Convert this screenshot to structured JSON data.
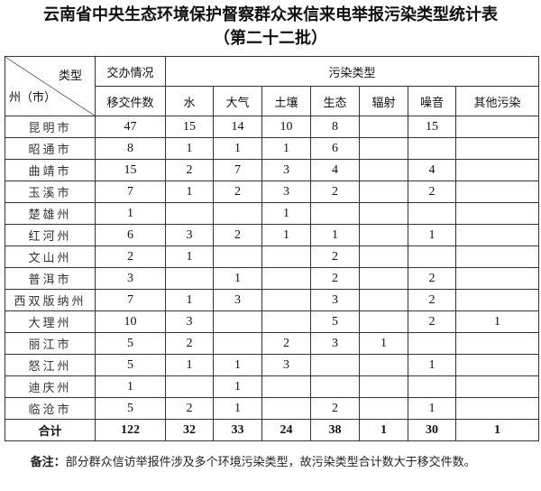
{
  "title": "云南省中央生态环境保护督察群众来信来电举报污染类型统计表",
  "subtitle": "（第二十二批）",
  "header": {
    "corner_top": "类型",
    "corner_bottom": "州（市）",
    "group1": "交办情况",
    "group2": "污染类型",
    "columns": [
      "移交件数",
      "水",
      "大气",
      "土壤",
      "生态",
      "辐射",
      "噪音",
      "其他污染"
    ]
  },
  "rows": [
    {
      "name": "昆明市",
      "values": [
        "47",
        "15",
        "14",
        "10",
        "8",
        "",
        "15",
        ""
      ]
    },
    {
      "name": "昭通市",
      "values": [
        "8",
        "1",
        "1",
        "1",
        "6",
        "",
        "",
        ""
      ]
    },
    {
      "name": "曲靖市",
      "values": [
        "15",
        "2",
        "7",
        "3",
        "4",
        "",
        "4",
        ""
      ]
    },
    {
      "name": "玉溪市",
      "values": [
        "7",
        "1",
        "2",
        "3",
        "2",
        "",
        "2",
        ""
      ]
    },
    {
      "name": "楚雄州",
      "values": [
        "1",
        "",
        "",
        "1",
        "",
        "",
        "",
        ""
      ]
    },
    {
      "name": "红河州",
      "values": [
        "6",
        "3",
        "2",
        "1",
        "1",
        "",
        "1",
        ""
      ]
    },
    {
      "name": "文山州",
      "values": [
        "2",
        "1",
        "",
        "",
        "2",
        "",
        "",
        ""
      ]
    },
    {
      "name": "普洱市",
      "values": [
        "3",
        "",
        "1",
        "",
        "2",
        "",
        "2",
        ""
      ]
    },
    {
      "name": "西双版纳州",
      "values": [
        "7",
        "1",
        "3",
        "",
        "3",
        "",
        "2",
        ""
      ]
    },
    {
      "name": "大理州",
      "values": [
        "10",
        "3",
        "",
        "",
        "5",
        "",
        "2",
        "1"
      ]
    },
    {
      "name": "丽江市",
      "values": [
        "5",
        "2",
        "",
        "2",
        "3",
        "1",
        "",
        ""
      ]
    },
    {
      "name": "怒江州",
      "values": [
        "5",
        "1",
        "1",
        "3",
        "",
        "",
        "1",
        ""
      ]
    },
    {
      "name": "迪庆州",
      "values": [
        "1",
        "",
        "1",
        "",
        "",
        "",
        "",
        ""
      ]
    },
    {
      "name": "临沧市",
      "values": [
        "5",
        "2",
        "1",
        "",
        "2",
        "",
        "1",
        ""
      ]
    }
  ],
  "total": {
    "name": "合计",
    "values": [
      "122",
      "32",
      "33",
      "24",
      "38",
      "1",
      "30",
      "1"
    ]
  },
  "note": {
    "label": "备注：",
    "text": "部分群众信访举报件涉及多个环境污染类型，故污染类型合计数大于移交件数。"
  }
}
